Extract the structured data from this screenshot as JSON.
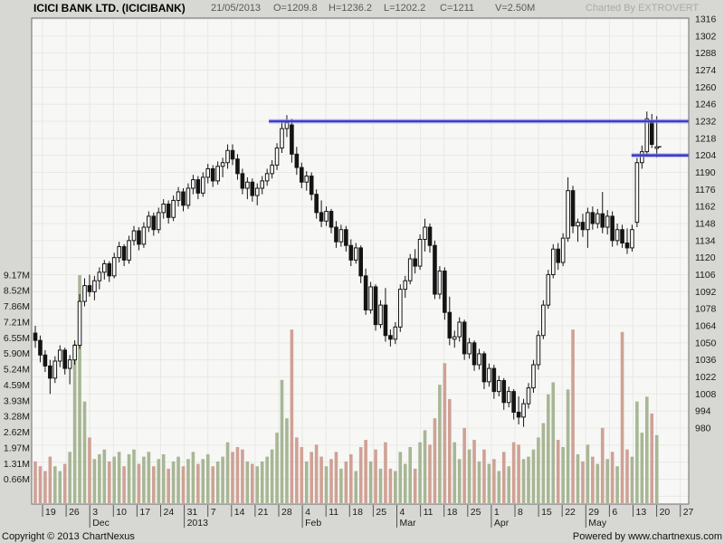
{
  "header": {
    "title": "ICICI BANK LTD. (ICICIBANK)",
    "date": "21/05/2013",
    "open": "O=1209.8",
    "high": "H=1236.2",
    "low": "L=1202.2",
    "close": "C=1211",
    "volume": "V=2.50M",
    "credit": "Charted By EXTROVERT"
  },
  "footer": {
    "copyright": "Copyright © 2013 ChartNexus",
    "powered": "Powered by www.chartnexus.com"
  },
  "colors": {
    "page_bg": "#d7d7d4",
    "plot_bg": "#f7f7f5",
    "grid": "#e8e8e5",
    "border": "#6e6e6e",
    "candle_up_fill": "#ffffff",
    "candle_down_fill": "#141414",
    "candle_stroke": "#141414",
    "volume_up": "#a7b694",
    "volume_down": "#cfa195",
    "trendline": "#3d3dcb",
    "trendline_halo": "#9a9ae6",
    "axis_text": "#1a1a1a"
  },
  "chart_data": {
    "type": "candlestick_with_volume",
    "title": "ICICI BANK LTD. (ICICIBANK)",
    "symbol": "ICICIBANK",
    "last_quote": {
      "date": "21/05/2013",
      "open": 1209.8,
      "high": 1236.2,
      "low": 1202.2,
      "close": 1211,
      "volume_label": "2.50M"
    },
    "price_axis": {
      "side": "right",
      "min": 980,
      "max": 1316,
      "tick_step": 14,
      "tick_labels": [
        "1316",
        "1302",
        "1288",
        "1274",
        "1260",
        "1246",
        "1232",
        "1218",
        "1204",
        "1190",
        "1176",
        "1162",
        "1148",
        "1134",
        "1120",
        "1106",
        "1092",
        "1078",
        "1064",
        "1050",
        "1036",
        "1022",
        "1008",
        "994",
        "980"
      ]
    },
    "volume_axis": {
      "side": "left",
      "tick_labels": [
        "9.17M",
        "8.52M",
        "7.86M",
        "7.21M",
        "6.55M",
        "5.90M",
        "5.24M",
        "4.59M",
        "3.93M",
        "3.28M",
        "2.62M",
        "1.97M",
        "1.31M",
        "0.66M"
      ],
      "tick_values": [
        9.17,
        8.52,
        7.86,
        7.21,
        6.55,
        5.9,
        5.24,
        4.59,
        3.93,
        3.28,
        2.62,
        1.97,
        1.31,
        0.66
      ]
    },
    "x_axis": {
      "week_tick_labels": [
        "19",
        "26",
        "3",
        "10",
        "17",
        "24",
        "31",
        "7",
        "14",
        "21",
        "28",
        "4",
        "11",
        "18",
        "25",
        "4",
        "11",
        "18",
        "25",
        "1",
        "8",
        "15",
        "22",
        "29",
        "6",
        "13",
        "20",
        "27"
      ],
      "month_labels": [
        {
          "week_index": 2,
          "label": "Dec"
        },
        {
          "week_index": 6,
          "label": "2013"
        },
        {
          "week_index": 11,
          "label": "Feb"
        },
        {
          "week_index": 15,
          "label": "Mar"
        },
        {
          "week_index": 19,
          "label": "Apr"
        },
        {
          "week_index": 23,
          "label": "May"
        }
      ]
    },
    "trendlines": [
      {
        "price": 1232,
        "x1_frac": 0.361,
        "x2_frac": 1.0
      },
      {
        "price": 1204,
        "x1_frac": 0.913,
        "x2_frac": 1.0
      }
    ],
    "candles_format": [
      "open",
      "high",
      "low",
      "close",
      "volume_millions"
    ],
    "candles": [
      [
        1058,
        1064,
        1046,
        1052,
        1.4
      ],
      [
        1052,
        1056,
        1034,
        1040,
        1.2
      ],
      [
        1040,
        1044,
        1026,
        1031,
        1.0
      ],
      [
        1031,
        1036,
        1008,
        1021,
        1.6
      ],
      [
        1021,
        1039,
        1017,
        1035,
        1.2
      ],
      [
        1035,
        1048,
        1030,
        1044,
        1.0
      ],
      [
        1044,
        1046,
        1024,
        1029,
        1.3
      ],
      [
        1029,
        1040,
        1016,
        1036,
        1.8
      ],
      [
        1036,
        1052,
        1032,
        1048,
        6.3
      ],
      [
        1048,
        1090,
        1045,
        1084,
        9.17
      ],
      [
        1084,
        1103,
        1080,
        1097,
        3.9
      ],
      [
        1097,
        1106,
        1088,
        1092,
        2.4
      ],
      [
        1092,
        1105,
        1085,
        1101,
        1.5
      ],
      [
        1101,
        1112,
        1094,
        1108,
        1.7
      ],
      [
        1108,
        1118,
        1102,
        1115,
        1.9
      ],
      [
        1115,
        1117,
        1100,
        1105,
        1.4
      ],
      [
        1105,
        1124,
        1103,
        1120,
        1.6
      ],
      [
        1120,
        1133,
        1116,
        1129,
        1.8
      ],
      [
        1129,
        1131,
        1113,
        1118,
        1.2
      ],
      [
        1118,
        1138,
        1115,
        1134,
        1.7
      ],
      [
        1134,
        1146,
        1130,
        1142,
        1.9
      ],
      [
        1142,
        1145,
        1126,
        1131,
        1.3
      ],
      [
        1131,
        1149,
        1128,
        1145,
        1.6
      ],
      [
        1145,
        1158,
        1141,
        1154,
        1.8
      ],
      [
        1154,
        1157,
        1138,
        1143,
        1.2
      ],
      [
        1143,
        1161,
        1140,
        1157,
        1.5
      ],
      [
        1157,
        1168,
        1152,
        1164,
        1.7
      ],
      [
        1164,
        1167,
        1148,
        1153,
        1.1
      ],
      [
        1153,
        1171,
        1150,
        1167,
        1.4
      ],
      [
        1167,
        1178,
        1162,
        1174,
        1.6
      ],
      [
        1174,
        1177,
        1158,
        1163,
        1.2
      ],
      [
        1163,
        1181,
        1160,
        1177,
        1.5
      ],
      [
        1177,
        1188,
        1172,
        1184,
        1.8
      ],
      [
        1184,
        1187,
        1168,
        1173,
        1.3
      ],
      [
        1173,
        1190,
        1170,
        1186,
        1.5
      ],
      [
        1186,
        1197,
        1181,
        1193,
        1.7
      ],
      [
        1193,
        1196,
        1178,
        1183,
        1.2
      ],
      [
        1183,
        1199,
        1180,
        1195,
        1.4
      ],
      [
        1195,
        1202,
        1186,
        1198,
        1.6
      ],
      [
        1198,
        1213,
        1193,
        1208,
        2.2
      ],
      [
        1208,
        1213,
        1196,
        1201,
        1.8
      ],
      [
        1201,
        1205,
        1184,
        1189,
        2.0
      ],
      [
        1189,
        1193,
        1172,
        1177,
        1.9
      ],
      [
        1177,
        1186,
        1168,
        1182,
        1.4
      ],
      [
        1182,
        1185,
        1166,
        1171,
        1.3
      ],
      [
        1171,
        1181,
        1163,
        1177,
        1.2
      ],
      [
        1177,
        1187,
        1172,
        1183,
        1.4
      ],
      [
        1183,
        1193,
        1179,
        1189,
        1.6
      ],
      [
        1189,
        1200,
        1185,
        1196,
        1.9
      ],
      [
        1196,
        1214,
        1192,
        1210,
        2.6
      ],
      [
        1210,
        1233,
        1206,
        1226,
        4.8
      ],
      [
        1226,
        1237,
        1219,
        1231,
        3.2
      ],
      [
        1229,
        1234,
        1198,
        1205,
        6.9
      ],
      [
        1205,
        1211,
        1188,
        1194,
        2.4
      ],
      [
        1194,
        1198,
        1177,
        1182,
        2.0
      ],
      [
        1182,
        1191,
        1175,
        1187,
        1.4
      ],
      [
        1187,
        1190,
        1167,
        1172,
        1.8
      ],
      [
        1172,
        1176,
        1152,
        1157,
        2.1
      ],
      [
        1157,
        1167,
        1145,
        1150,
        1.6
      ],
      [
        1150,
        1162,
        1146,
        1158,
        1.2
      ],
      [
        1158,
        1160,
        1140,
        1145,
        1.5
      ],
      [
        1145,
        1150,
        1128,
        1133,
        1.8
      ],
      [
        1133,
        1147,
        1129,
        1143,
        1.1
      ],
      [
        1143,
        1146,
        1125,
        1130,
        1.4
      ],
      [
        1130,
        1135,
        1113,
        1118,
        1.7
      ],
      [
        1118,
        1132,
        1115,
        1128,
        1.0
      ],
      [
        1128,
        1130,
        1099,
        1105,
        2.0
      ],
      [
        1105,
        1111,
        1073,
        1077,
        2.3
      ],
      [
        1077,
        1100,
        1074,
        1096,
        1.4
      ],
      [
        1096,
        1098,
        1060,
        1065,
        1.9
      ],
      [
        1065,
        1085,
        1062,
        1081,
        1.1
      ],
      [
        1081,
        1095,
        1051,
        1056,
        2.2
      ],
      [
        1056,
        1061,
        1047,
        1053,
        1.1
      ],
      [
        1053,
        1067,
        1049,
        1063,
        1.0
      ],
      [
        1063,
        1098,
        1059,
        1094,
        1.8
      ],
      [
        1094,
        1105,
        1087,
        1101,
        1.3
      ],
      [
        1101,
        1123,
        1098,
        1119,
        2.0
      ],
      [
        1119,
        1127,
        1107,
        1113,
        1.1
      ],
      [
        1113,
        1139,
        1110,
        1135,
        2.2
      ],
      [
        1135,
        1152,
        1125,
        1145,
        2.7
      ],
      [
        1145,
        1148,
        1124,
        1130,
        2.1
      ],
      [
        1130,
        1134,
        1086,
        1090,
        3.2
      ],
      [
        1090,
        1113,
        1086,
        1109,
        4.6
      ],
      [
        1109,
        1112,
        1069,
        1075,
        5.5
      ],
      [
        1075,
        1088,
        1048,
        1054,
        4.0
      ],
      [
        1053,
        1060,
        1046,
        1055,
        2.2
      ],
      [
        1055,
        1071,
        1051,
        1067,
        1.5
      ],
      [
        1067,
        1069,
        1036,
        1041,
        2.8
      ],
      [
        1041,
        1054,
        1037,
        1050,
        1.9
      ],
      [
        1050,
        1052,
        1027,
        1032,
        2.3
      ],
      [
        1032,
        1045,
        1028,
        1041,
        1.4
      ],
      [
        1041,
        1043,
        1012,
        1018,
        1.9
      ],
      [
        1018,
        1033,
        1014,
        1029,
        1.3
      ],
      [
        1029,
        1032,
        1004,
        1010,
        1.5
      ],
      [
        1010,
        1023,
        1006,
        1019,
        1.0
      ],
      [
        1019,
        1021,
        995,
        1001,
        1.8
      ],
      [
        1001,
        1014,
        997,
        1010,
        1.2
      ],
      [
        1010,
        1012,
        987,
        993,
        2.2
      ],
      [
        993,
        1006,
        983,
        989,
        2.1
      ],
      [
        989,
        1004,
        981,
        1000,
        1.5
      ],
      [
        1000,
        1017,
        996,
        1013,
        1.6
      ],
      [
        1013,
        1036,
        1009,
        1032,
        1.9
      ],
      [
        1032,
        1060,
        1028,
        1056,
        2.4
      ],
      [
        1056,
        1085,
        1053,
        1081,
        3.0
      ],
      [
        1081,
        1110,
        1078,
        1106,
        4.2
      ],
      [
        1106,
        1131,
        1103,
        1127,
        4.7
      ],
      [
        1127,
        1132,
        1110,
        1116,
        2.3
      ],
      [
        1116,
        1140,
        1113,
        1136,
        2.0
      ],
      [
        1136,
        1186,
        1133,
        1175,
        4.4
      ],
      [
        1175,
        1179,
        1140,
        1146,
        6.9
      ],
      [
        1146,
        1152,
        1133,
        1149,
        1.7
      ],
      [
        1149,
        1156,
        1137,
        1143,
        1.4
      ],
      [
        1143,
        1161,
        1128,
        1157,
        2.1
      ],
      [
        1157,
        1162,
        1143,
        1148,
        1.6
      ],
      [
        1148,
        1160,
        1144,
        1156,
        1.3
      ],
      [
        1156,
        1174,
        1140,
        1145,
        2.8
      ],
      [
        1145,
        1159,
        1139,
        1154,
        1.5
      ],
      [
        1154,
        1158,
        1129,
        1134,
        1.8
      ],
      [
        1134,
        1148,
        1130,
        1143,
        1.2
      ],
      [
        1143,
        1147,
        1128,
        1132,
        6.8
      ],
      [
        1132,
        1144,
        1123,
        1128,
        1.9
      ],
      [
        1128,
        1147,
        1125,
        1143,
        1.6
      ],
      [
        1149,
        1202,
        1145,
        1198,
        3.9
      ],
      [
        1198,
        1212,
        1193,
        1207,
        2.6
      ],
      [
        1207,
        1240,
        1204,
        1234,
        4.1
      ],
      [
        1232,
        1238,
        1210,
        1213,
        3.4
      ],
      [
        1209.8,
        1236.2,
        1202.2,
        1211,
        2.5
      ]
    ]
  }
}
